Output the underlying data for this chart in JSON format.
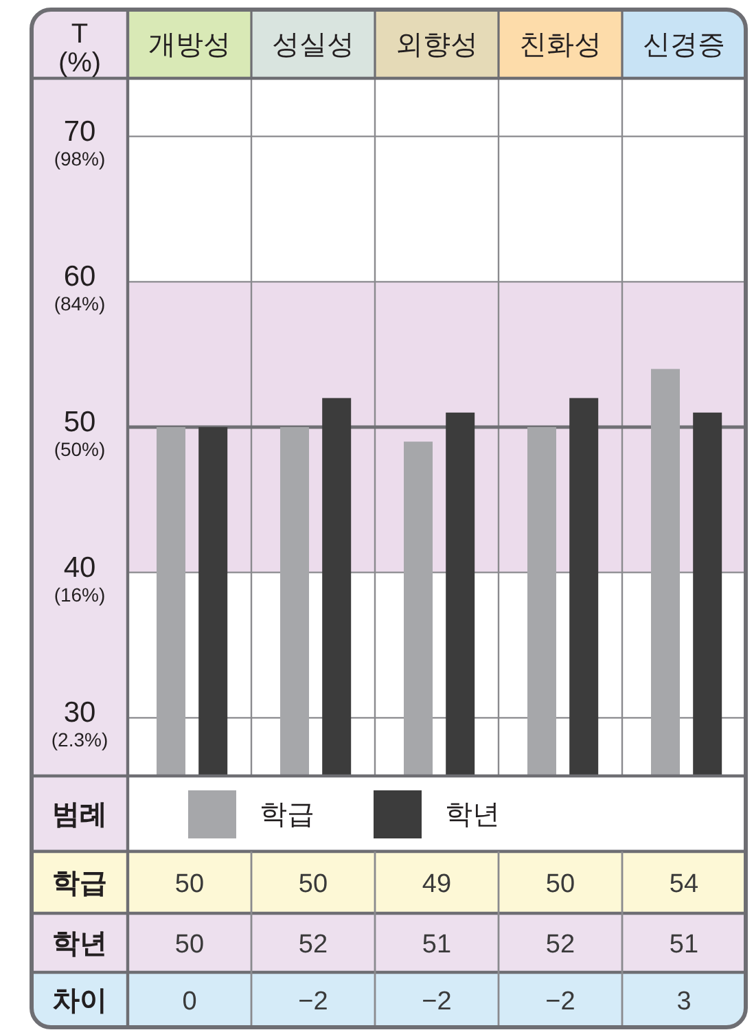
{
  "chart_data": {
    "type": "bar",
    "ylabel": "T\n(%)",
    "categories": [
      "개방성",
      "성실성",
      "외향성",
      "친화성",
      "신경증"
    ],
    "series": [
      {
        "name": "학급",
        "color": "#a6a7aa",
        "values": [
          50,
          50,
          49,
          50,
          54
        ]
      },
      {
        "name": "학년",
        "color": "#3c3c3c",
        "values": [
          50,
          52,
          51,
          52,
          51
        ]
      }
    ],
    "ylim": [
      26,
      74
    ],
    "yticks": [
      30,
      40,
      50,
      60,
      70
    ],
    "grid": true,
    "bands": [
      {
        "axis": "y",
        "from": 40,
        "to": 60,
        "color": "#ecdcec"
      }
    ],
    "ref_lines": [
      {
        "axis": "y",
        "value": 50,
        "color": "#707075"
      }
    ],
    "legend": "bottom",
    "legend_title": "범례",
    "data_labels": true,
    "annotations": [
      "차이",
      "0",
      "−2",
      "−2",
      "−2",
      "3",
      "(2.3%)",
      "(16%)",
      "(50%)",
      "(84%)",
      "(98%)"
    ]
  }
}
